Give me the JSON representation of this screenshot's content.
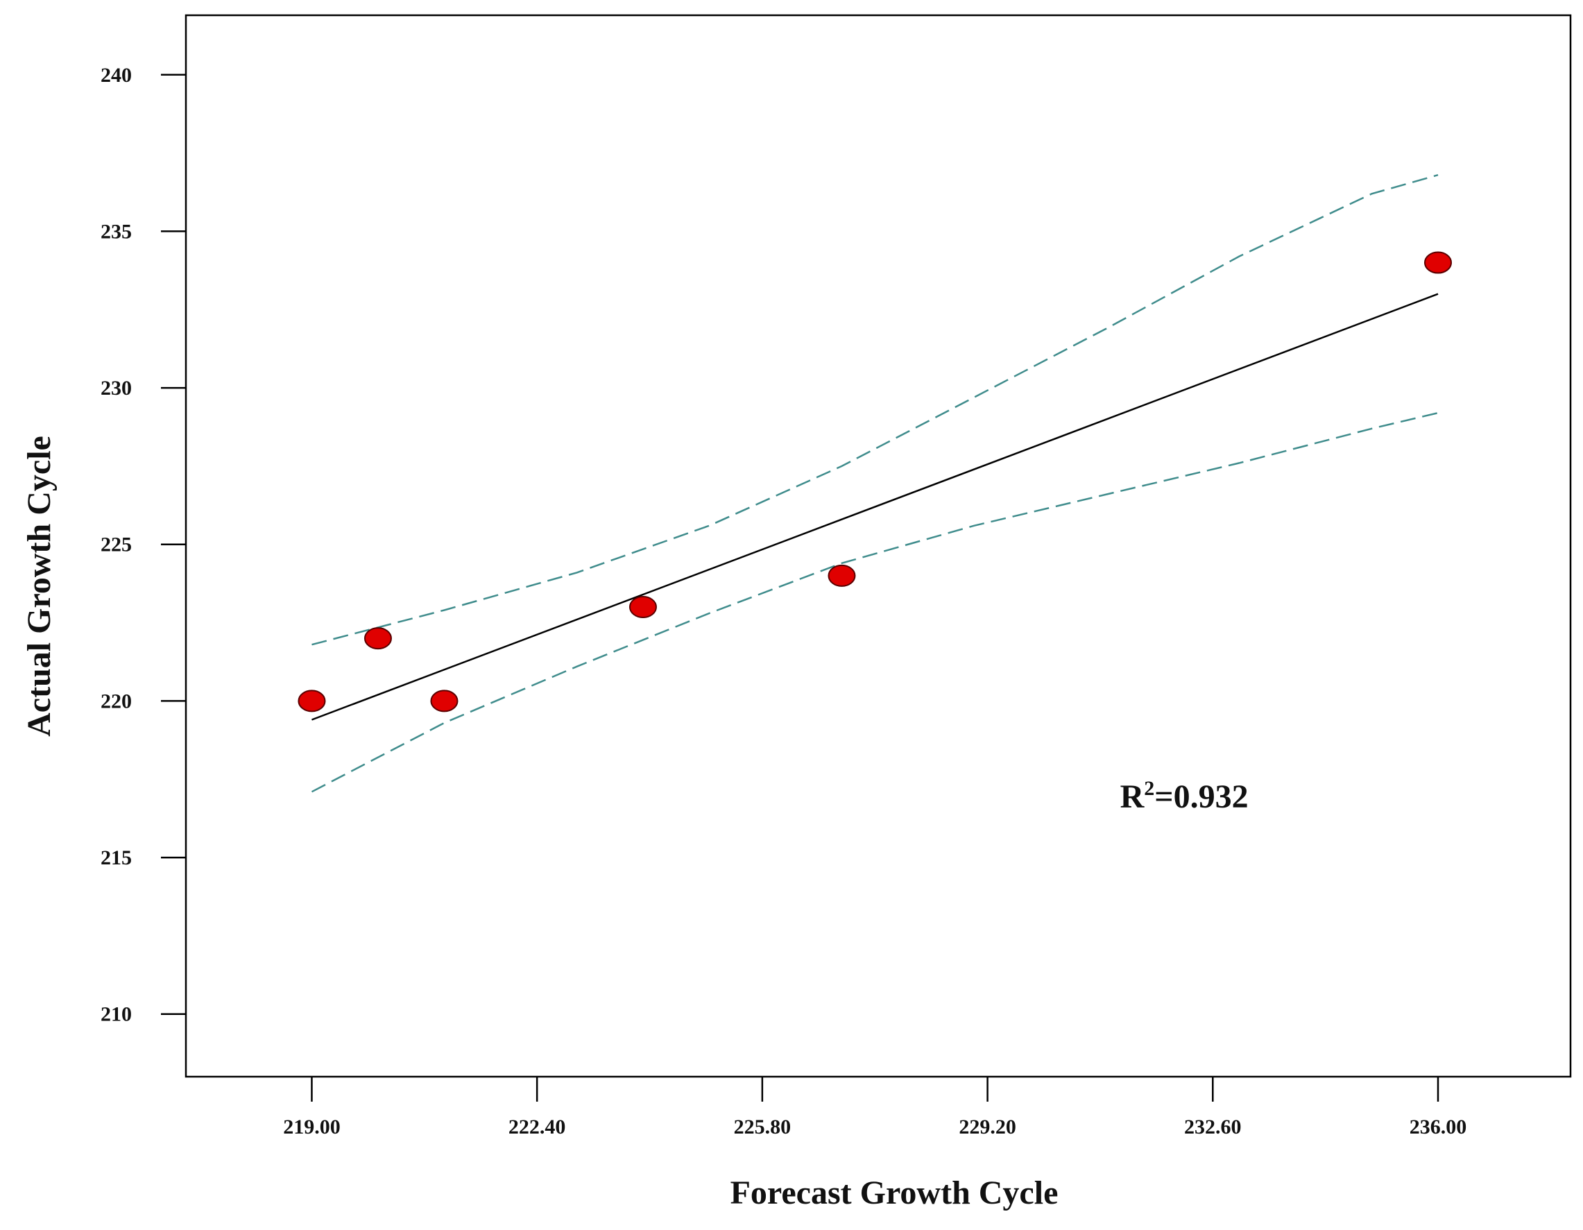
{
  "chart_data": {
    "type": "scatter",
    "title": "",
    "xlabel": "Forecast Growth Cycle",
    "ylabel": "Actual Growth Cycle",
    "xlim": [
      217.1,
      238.0
    ],
    "ylim": [
      208,
      241.9
    ],
    "x_ticks": [
      219.0,
      222.4,
      225.8,
      229.2,
      232.6,
      236.0
    ],
    "x_tick_labels": [
      "219.00",
      "222.40",
      "225.80",
      "229.20",
      "232.60",
      "236.00"
    ],
    "y_ticks": [
      210,
      215,
      220,
      225,
      230,
      235,
      240
    ],
    "y_tick_labels": [
      "210",
      "215",
      "220",
      "225",
      "230",
      "235",
      "240"
    ],
    "grid": false,
    "points": [
      {
        "x": 219.0,
        "y": 220
      },
      {
        "x": 220.0,
        "y": 222
      },
      {
        "x": 221.0,
        "y": 220
      },
      {
        "x": 224.0,
        "y": 223
      },
      {
        "x": 227.0,
        "y": 224
      },
      {
        "x": 236.0,
        "y": 234
      }
    ],
    "fit_line": {
      "x": [
        219.0,
        236.0
      ],
      "y": [
        219.4,
        233.0
      ]
    },
    "upper_band": {
      "x": [
        219.0,
        221.0,
        223.0,
        225.0,
        227.0,
        229.0,
        231.0,
        233.0,
        235.0,
        236.0
      ],
      "y": [
        221.8,
        222.9,
        224.1,
        225.6,
        227.5,
        229.7,
        231.9,
        234.2,
        236.2,
        236.8
      ]
    },
    "lower_band": {
      "x": [
        219.0,
        221.0,
        223.0,
        225.0,
        227.0,
        229.0,
        231.0,
        233.0,
        235.0,
        236.0
      ],
      "y": [
        217.1,
        219.3,
        221.1,
        222.8,
        224.4,
        225.6,
        226.6,
        227.6,
        228.7,
        229.2
      ]
    },
    "annotation": {
      "base": "R",
      "sup": "2",
      "rest": "=0.932",
      "x": 231.2,
      "y": 216.6
    },
    "colors": {
      "point_fill": "#e00000",
      "point_stroke": "#5a0000",
      "fit_line": "#000000",
      "band_line": "#3f8c8c",
      "axis": "#000000"
    }
  }
}
